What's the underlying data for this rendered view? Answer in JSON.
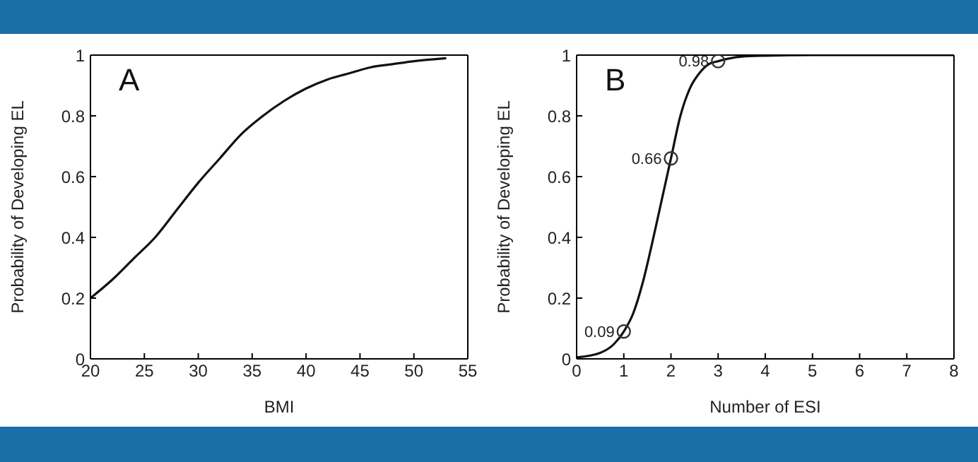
{
  "chart_data": [
    {
      "type": "line",
      "title": "A",
      "xlabel": "BMI",
      "ylabel": "Probability of Developing EL",
      "xlim": [
        20,
        55
      ],
      "xticks": [
        20,
        25,
        30,
        35,
        40,
        45,
        50,
        55
      ],
      "ylim": [
        0,
        1
      ],
      "yticks": [
        0,
        0.2,
        0.4,
        0.6,
        0.8,
        1
      ],
      "marker": "none",
      "line_style": "solid",
      "series": [
        {
          "color": "#111111",
          "x": [
            20,
            22,
            24,
            26,
            28,
            30,
            32,
            34,
            36,
            38,
            40,
            42,
            44,
            46,
            48,
            50,
            53
          ],
          "values": [
            0.2,
            0.26,
            0.33,
            0.4,
            0.49,
            0.58,
            0.66,
            0.74,
            0.8,
            0.85,
            0.89,
            0.92,
            0.94,
            0.96,
            0.97,
            0.98,
            0.99
          ]
        }
      ]
    },
    {
      "type": "line",
      "title": "B",
      "xlabel": "Number of ESI",
      "ylabel": "Probability of Developing EL",
      "xlim": [
        0,
        8
      ],
      "xticks": [
        0,
        1,
        2,
        3,
        4,
        5,
        6,
        7,
        8
      ],
      "ylim": [
        0,
        1
      ],
      "yticks": [
        0,
        0.2,
        0.4,
        0.6,
        0.8,
        1
      ],
      "marker": "none",
      "line_style": "solid",
      "series": [
        {
          "color": "#111111",
          "x": [
            0,
            0.5,
            0.8,
            1,
            1.2,
            1.4,
            1.6,
            1.8,
            2,
            2.2,
            2.4,
            2.6,
            2.8,
            3,
            3.5,
            4,
            5,
            8
          ],
          "values": [
            0.005,
            0.02,
            0.05,
            0.09,
            0.15,
            0.25,
            0.38,
            0.52,
            0.66,
            0.8,
            0.89,
            0.94,
            0.97,
            0.98,
            0.995,
            0.998,
            1,
            1
          ]
        },
        {
          "type": "scatter",
          "marker": "circle",
          "color": "#333333",
          "x": [
            1,
            2,
            3
          ],
          "values": [
            0.09,
            0.66,
            0.98
          ],
          "value_labels": [
            "0.09",
            "0.66",
            "0.98"
          ]
        }
      ]
    }
  ]
}
